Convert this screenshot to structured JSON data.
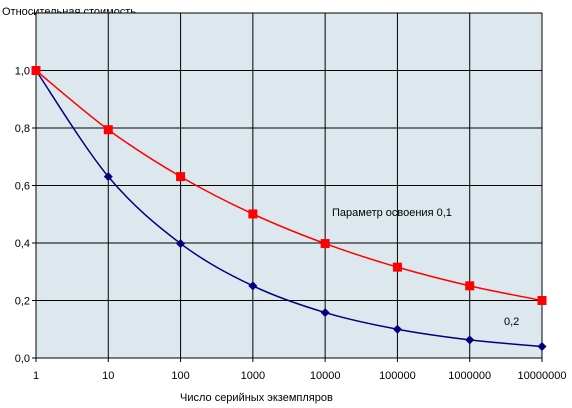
{
  "chart_data": {
    "type": "line",
    "ylabel": "Относительная стоимость",
    "xlabel": "Число серийных экземпляров",
    "x_scale": "log",
    "categories": [
      "1",
      "10",
      "100",
      "1000",
      "10000",
      "100000",
      "1000000",
      "10000000"
    ],
    "x": [
      1,
      10,
      100,
      1000,
      10000,
      100000,
      1000000,
      10000000
    ],
    "ylim": [
      0,
      1.2
    ],
    "yticks": [
      "0,0",
      "0,2",
      "0,4",
      "0,6",
      "0,8",
      "1,0"
    ],
    "ytick_values": [
      0,
      0.2,
      0.4,
      0.6,
      0.8,
      1.0
    ],
    "grid": true,
    "plot_background": "#dde8ee",
    "series": [
      {
        "name": "Параметр освоения 0,1",
        "color": "#ff0000",
        "marker": "square",
        "values": [
          1.0,
          0.794,
          0.631,
          0.501,
          0.398,
          0.316,
          0.251,
          0.2
        ]
      },
      {
        "name": "0,2",
        "color": "#000080",
        "marker": "diamond",
        "values": [
          1.0,
          0.631,
          0.398,
          0.251,
          0.158,
          0.1,
          0.063,
          0.04
        ]
      }
    ]
  }
}
